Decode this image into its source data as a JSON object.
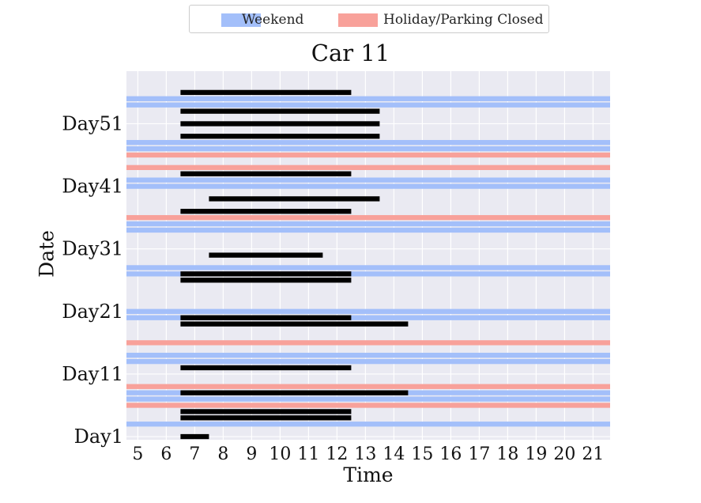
{
  "legend": {
    "weekend_label": "Weekend",
    "holiday_label": "Holiday/Parking Closed"
  },
  "colors": {
    "weekend": "#a3bffa",
    "holiday": "#f8a19a",
    "usage": "#000000",
    "plot_bg": "#eaeaf2",
    "grid": "#ffffff"
  },
  "chart_data": {
    "type": "broken_barh",
    "title": "Car 11",
    "xlabel": "Time",
    "ylabel": "Date",
    "xlim": [
      4.6,
      21.6
    ],
    "ylim": [
      -0.5,
      58.4
    ],
    "x_ticks": [
      5,
      6,
      7,
      8,
      9,
      10,
      11,
      12,
      13,
      14,
      15,
      16,
      17,
      18,
      19,
      20,
      21
    ],
    "y_ticks": [
      {
        "label": "Day1",
        "value": 0
      },
      {
        "label": "Day11",
        "value": 10
      },
      {
        "label": "Day21",
        "value": 20
      },
      {
        "label": "Day31",
        "value": 30
      },
      {
        "label": "Day41",
        "value": 40
      },
      {
        "label": "Day51",
        "value": 50
      }
    ],
    "weekend_rows": [
      2,
      6,
      7,
      12,
      13,
      19,
      20,
      26,
      27,
      33,
      34,
      40,
      41,
      46,
      47,
      53,
      54
    ],
    "holiday_rows": [
      5,
      8,
      15,
      35,
      43,
      45
    ],
    "usage": [
      {
        "day": 0,
        "start": 6.5,
        "end": 7.5
      },
      {
        "day": 3,
        "start": 6.5,
        "end": 12.5
      },
      {
        "day": 4,
        "start": 6.5,
        "end": 12.5
      },
      {
        "day": 7,
        "start": 6.5,
        "end": 14.5
      },
      {
        "day": 11,
        "start": 6.5,
        "end": 12.5
      },
      {
        "day": 18,
        "start": 6.5,
        "end": 14.5
      },
      {
        "day": 19,
        "start": 6.5,
        "end": 12.5
      },
      {
        "day": 25,
        "start": 6.5,
        "end": 12.5
      },
      {
        "day": 26,
        "start": 6.5,
        "end": 12.5
      },
      {
        "day": 29,
        "start": 7.5,
        "end": 11.5
      },
      {
        "day": 36,
        "start": 6.5,
        "end": 12.5
      },
      {
        "day": 38,
        "start": 7.5,
        "end": 13.5
      },
      {
        "day": 42,
        "start": 6.5,
        "end": 12.5
      },
      {
        "day": 48,
        "start": 6.5,
        "end": 13.5
      },
      {
        "day": 50,
        "start": 6.5,
        "end": 13.5
      },
      {
        "day": 52,
        "start": 6.5,
        "end": 13.5
      },
      {
        "day": 55,
        "start": 6.5,
        "end": 12.5
      }
    ]
  }
}
